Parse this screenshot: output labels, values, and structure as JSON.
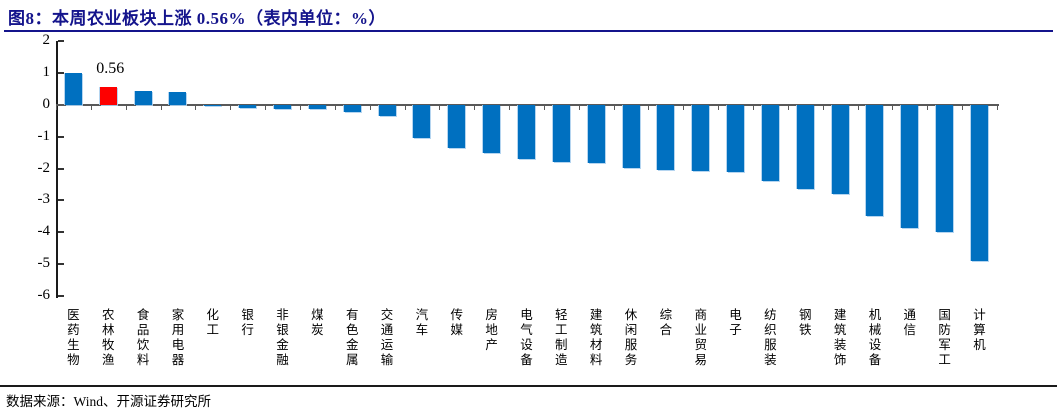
{
  "page": {
    "title": "图8：本周农业板块上涨 0.56%（表内单位：%）",
    "source": "数据来源：Wind、开源证券研究所"
  },
  "chart_data": {
    "type": "bar",
    "title": "本周农业板块上涨 0.56%（表内单位：%）",
    "figure_label": "图8",
    "unit": "%",
    "grid": false,
    "legend": "none",
    "ylim": [
      -6,
      2
    ],
    "yticks": [
      2,
      1,
      0,
      -1,
      -2,
      -3,
      -4,
      -5,
      -6
    ],
    "categories": [
      "医药生物",
      "农林牧渔",
      "食品饮料",
      "家用电器",
      "化工",
      "银行",
      "非银金融",
      "煤炭",
      "有色金属",
      "交通运输",
      "汽车",
      "传媒",
      "房地产",
      "电气设备",
      "轻工制造",
      "建筑材料",
      "休闲服务",
      "综合",
      "商业贸易",
      "电子",
      "纺织服装",
      "钢铁",
      "建筑装饰",
      "机械设备",
      "通信",
      "国防军工",
      "计算机"
    ],
    "values": [
      1.01,
      0.56,
      0.42,
      0.39,
      -0.05,
      -0.09,
      -0.12,
      -0.14,
      -0.23,
      -0.35,
      -1.03,
      -1.36,
      -1.52,
      -1.7,
      -1.8,
      -1.83,
      -1.98,
      -2.04,
      -2.07,
      -2.1,
      -2.4,
      -2.64,
      -2.81,
      -3.5,
      -3.88,
      -4.0,
      -4.91
    ],
    "colors": {
      "bar_default": "#0070C0",
      "bar_highlight": "#FE0000",
      "axis": "#1a1a1a",
      "zero_line": "#595959",
      "title": "#14148C"
    },
    "highlight_index": 1,
    "data_label": {
      "index": 1,
      "text": "0.56"
    }
  }
}
